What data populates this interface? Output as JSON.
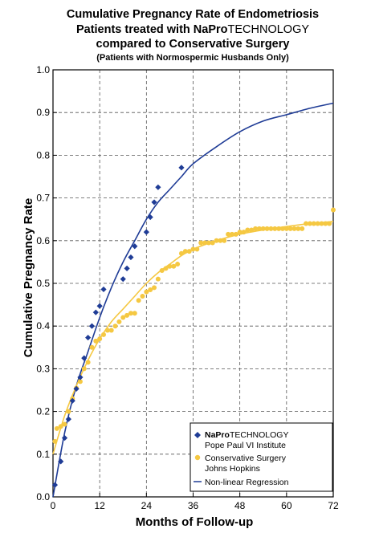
{
  "chart_data": {
    "type": "scatter",
    "title": {
      "line1": "Cumulative Pregnancy Rate of Endometriosis",
      "line2_prefix": "Patients treated with ",
      "line2_brand_bold": "NaPro",
      "line2_suffix": "TECHNOLOGY",
      "line3": "compared to Conservative Surgery",
      "subtitle": "(Patients with Normospermic Husbands Only)"
    },
    "xlabel": "Months of Follow-up",
    "ylabel": "Cumulative Pregnancy Rate",
    "xlim": [
      0,
      72
    ],
    "ylim": [
      0,
      1.0
    ],
    "xticks": [
      0,
      12,
      24,
      36,
      48,
      60,
      72
    ],
    "yticks": [
      0.0,
      0.1,
      0.2,
      0.3,
      0.4,
      0.5,
      0.6,
      0.7,
      0.8,
      0.9,
      1.0
    ],
    "ytick_labels": [
      "0.0",
      "0.1",
      "0.2",
      "0.3",
      "0.4",
      "0.5",
      "0.6",
      "0.7",
      "0.8",
      "0.9",
      "1.0"
    ],
    "grid": true,
    "legend_position": "bottom-right",
    "series": [
      {
        "name_bold": "NaPro",
        "name_rest": "TECHNOLOGY",
        "name_line2": "Pope Paul VI Institute",
        "marker": "diamond",
        "color": "#1f3c96",
        "points": [
          [
            0.5,
            0.028
          ],
          [
            2,
            0.083
          ],
          [
            3,
            0.138
          ],
          [
            4,
            0.182
          ],
          [
            5,
            0.225
          ],
          [
            6,
            0.253
          ],
          [
            7,
            0.28
          ],
          [
            8,
            0.325
          ],
          [
            9,
            0.373
          ],
          [
            10,
            0.4
          ],
          [
            11,
            0.432
          ],
          [
            12,
            0.447
          ],
          [
            13,
            0.486
          ],
          [
            18,
            0.51
          ],
          [
            19,
            0.535
          ],
          [
            20,
            0.561
          ],
          [
            21,
            0.587
          ],
          [
            24,
            0.62
          ],
          [
            25,
            0.655
          ],
          [
            26,
            0.69
          ],
          [
            27,
            0.725
          ],
          [
            33,
            0.771
          ]
        ]
      },
      {
        "name_line1": "Conservative Surgery",
        "name_line2": "Johns Hopkins",
        "marker": "circle",
        "color": "#f5c842",
        "points": [
          [
            0.5,
            0.13
          ],
          [
            1,
            0.16
          ],
          [
            2,
            0.165
          ],
          [
            3,
            0.17
          ],
          [
            4,
            0.2
          ],
          [
            5,
            0.23
          ],
          [
            6,
            0.255
          ],
          [
            7,
            0.27
          ],
          [
            8,
            0.3
          ],
          [
            9,
            0.315
          ],
          [
            10,
            0.35
          ],
          [
            11,
            0.365
          ],
          [
            12,
            0.37
          ],
          [
            13,
            0.38
          ],
          [
            14,
            0.39
          ],
          [
            15,
            0.39
          ],
          [
            16,
            0.4
          ],
          [
            17,
            0.41
          ],
          [
            18,
            0.42
          ],
          [
            19,
            0.425
          ],
          [
            20,
            0.43
          ],
          [
            21,
            0.43
          ],
          [
            22,
            0.46
          ],
          [
            23,
            0.47
          ],
          [
            24,
            0.48
          ],
          [
            25,
            0.485
          ],
          [
            26,
            0.49
          ],
          [
            27,
            0.51
          ],
          [
            28,
            0.53
          ],
          [
            29,
            0.535
          ],
          [
            30,
            0.54
          ],
          [
            31,
            0.54
          ],
          [
            32,
            0.545
          ],
          [
            33,
            0.57
          ],
          [
            34,
            0.575
          ],
          [
            35,
            0.575
          ],
          [
            36,
            0.58
          ],
          [
            37,
            0.58
          ],
          [
            38,
            0.595
          ],
          [
            39,
            0.595
          ],
          [
            40,
            0.595
          ],
          [
            41,
            0.595
          ],
          [
            42,
            0.6
          ],
          [
            43,
            0.6
          ],
          [
            44,
            0.6
          ],
          [
            45,
            0.615
          ],
          [
            46,
            0.615
          ],
          [
            47,
            0.615
          ],
          [
            48,
            0.62
          ],
          [
            49,
            0.62
          ],
          [
            50,
            0.625
          ],
          [
            51,
            0.625
          ],
          [
            52,
            0.628
          ],
          [
            53,
            0.628
          ],
          [
            54,
            0.628
          ],
          [
            55,
            0.628
          ],
          [
            56,
            0.628
          ],
          [
            57,
            0.628
          ],
          [
            58,
            0.628
          ],
          [
            59,
            0.628
          ],
          [
            60,
            0.628
          ],
          [
            61,
            0.628
          ],
          [
            62,
            0.628
          ],
          [
            63,
            0.628
          ],
          [
            64,
            0.628
          ],
          [
            65,
            0.64
          ],
          [
            66,
            0.64
          ],
          [
            67,
            0.64
          ],
          [
            68,
            0.64
          ],
          [
            69,
            0.64
          ],
          [
            70,
            0.64
          ],
          [
            71,
            0.64
          ],
          [
            72,
            0.672
          ]
        ]
      }
    ],
    "regression": {
      "name": "Non-linear Regression",
      "curves": [
        {
          "for": "NaProTECHNOLOGY",
          "color": "#1f3c96",
          "points": [
            [
              0,
              0
            ],
            [
              3,
              0.15
            ],
            [
              6,
              0.26
            ],
            [
              9,
              0.34
            ],
            [
              12,
              0.42
            ],
            [
              15,
              0.49
            ],
            [
              18,
              0.55
            ],
            [
              21,
              0.6
            ],
            [
              24,
              0.65
            ],
            [
              27,
              0.69
            ],
            [
              30,
              0.72
            ],
            [
              33,
              0.75
            ],
            [
              36,
              0.78
            ],
            [
              42,
              0.82
            ],
            [
              48,
              0.855
            ],
            [
              54,
              0.88
            ],
            [
              60,
              0.895
            ],
            [
              66,
              0.91
            ],
            [
              72,
              0.922
            ]
          ]
        },
        {
          "for": "Conservative Surgery",
          "color": "#f5c842",
          "points": [
            [
              0,
              0.1
            ],
            [
              3,
              0.19
            ],
            [
              6,
              0.26
            ],
            [
              9,
              0.32
            ],
            [
              12,
              0.37
            ],
            [
              15,
              0.41
            ],
            [
              18,
              0.44
            ],
            [
              21,
              0.47
            ],
            [
              24,
              0.5
            ],
            [
              27,
              0.525
            ],
            [
              30,
              0.545
            ],
            [
              33,
              0.565
            ],
            [
              36,
              0.58
            ],
            [
              42,
              0.6
            ],
            [
              48,
              0.615
            ],
            [
              54,
              0.625
            ],
            [
              60,
              0.633
            ],
            [
              66,
              0.64
            ],
            [
              72,
              0.645
            ]
          ]
        }
      ]
    }
  }
}
